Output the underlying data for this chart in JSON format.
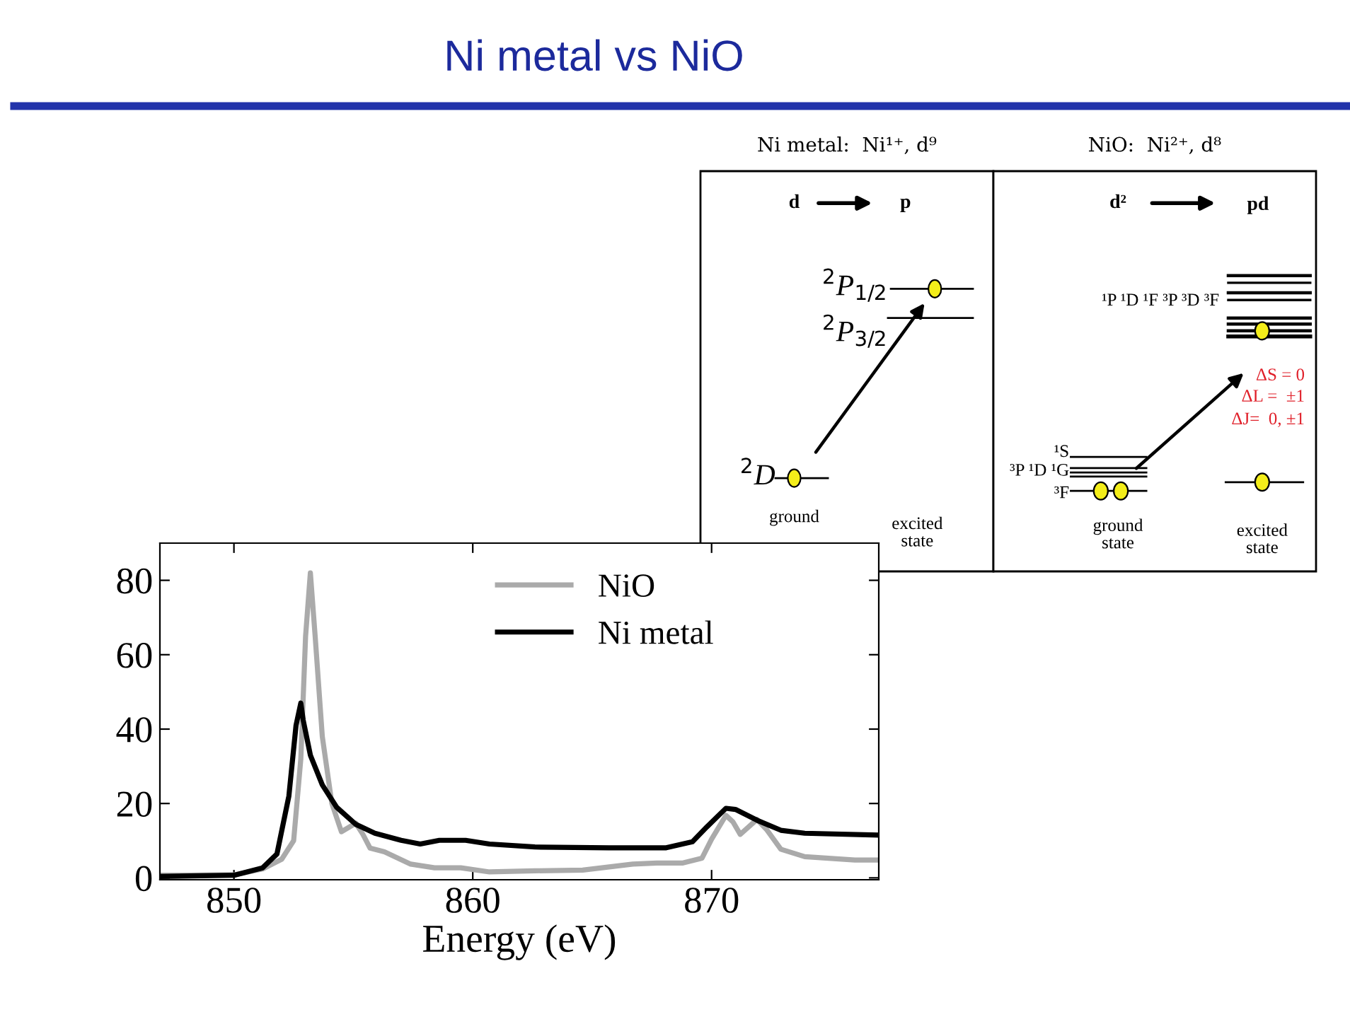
{
  "chart_data": [
    {
      "type": "line",
      "title": "Ni metal vs NiO",
      "xlabel": "Energy (eV)",
      "xlim": [
        846.9,
        877.0
      ],
      "ylim": [
        -0.5,
        90
      ],
      "xticks": [
        850,
        860,
        870
      ],
      "yticks": [
        0,
        20,
        40,
        60,
        80
      ],
      "grid": false,
      "legend": "top",
      "line_style": "solid",
      "series": [
        {
          "name": "NiO",
          "color": "#aaaaaa",
          "x": [
            846.9,
            850.0,
            851.2,
            852.0,
            852.5,
            852.8,
            853.0,
            853.2,
            853.4,
            853.7,
            854.1,
            854.5,
            855.1,
            855.4,
            855.7,
            856.3,
            857.4,
            858.4,
            859.5,
            860.7,
            862.6,
            864.6,
            866.7,
            867.7,
            868.8,
            869.6,
            870.0,
            870.6,
            870.9,
            871.2,
            871.9,
            872.3,
            872.9,
            873.9,
            876.0,
            877.0
          ],
          "values": [
            0.7,
            0.8,
            2.4,
            5,
            10,
            32,
            65,
            82,
            65,
            38,
            20,
            12.4,
            14.7,
            11.7,
            8,
            7,
            3.7,
            2.7,
            2.7,
            1.6,
            1.9,
            2.1,
            3.7,
            4,
            4,
            5.3,
            10.4,
            16.8,
            15,
            11.7,
            15.7,
            13,
            7.7,
            5.7,
            4.8,
            4.8
          ]
        },
        {
          "name": "Ni metal",
          "color": "#000000",
          "x": [
            846.9,
            850.0,
            851.2,
            851.8,
            852.3,
            852.6,
            852.8,
            852.9,
            853.2,
            853.7,
            854.3,
            855.1,
            855.9,
            857.0,
            857.8,
            858.6,
            859.7,
            860.7,
            862.6,
            865.7,
            868.1,
            869.2,
            869.8,
            870.6,
            871.0,
            871.9,
            872.9,
            873.9,
            877.0
          ],
          "values": [
            0.4,
            0.7,
            2.7,
            6.4,
            22,
            41,
            47,
            42.4,
            33,
            25,
            19,
            14.4,
            12,
            10.1,
            9.1,
            10.1,
            10.1,
            9.1,
            8.3,
            8.1,
            8.1,
            9.7,
            13.7,
            18.7,
            18.4,
            15.5,
            12.8,
            12,
            11.5
          ]
        }
      ]
    },
    {
      "type": "other",
      "title": "Ni metal:  Ni¹⁺, d⁹",
      "annotations": [
        "d",
        "p",
        "$^{2}$P$_{1/2}$",
        "$^{2}$P$_{3/2}$",
        "$^{2}$D",
        "ground",
        "excited\nstate"
      ]
    },
    {
      "type": "other",
      "title": "NiO:  Ni²⁺, d⁸",
      "annotations": [
        "d²",
        "pd",
        "¹P ¹D ¹F ³P ³D ³F",
        "ΔS = 0",
        "ΔL =  ±1",
        "ΔJ=  0, ±1",
        "¹S",
        "³P ¹D ¹G",
        "³F",
        "ground\nstate",
        "excited\nstate"
      ]
    }
  ]
}
